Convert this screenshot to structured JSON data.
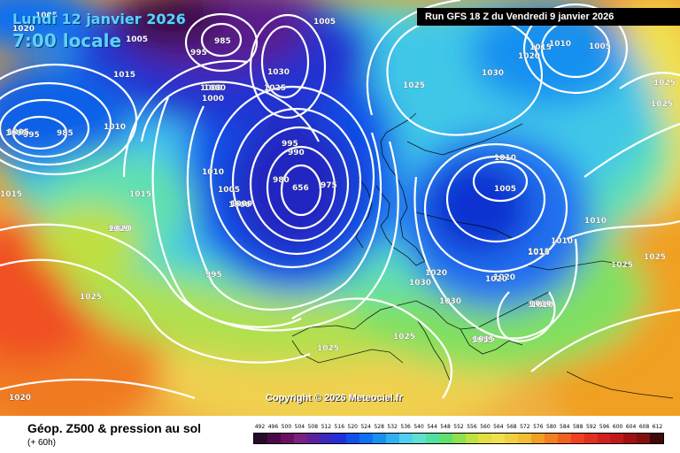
{
  "header": {
    "date": "Lundi 12 janvier 2026",
    "time": "7:00 locale",
    "run": "Run GFS 18 Z du Vendredi 9 janvier 2026"
  },
  "footer": {
    "title": "Géop. Z500 & pression au sol",
    "subtitle": "(+ 60h)",
    "copyright": "Copyright © 2026 Meteociel.fr"
  },
  "scale": {
    "labels": [
      "492",
      "496",
      "500",
      "504",
      "508",
      "512",
      "516",
      "520",
      "524",
      "528",
      "532",
      "536",
      "540",
      "544",
      "548",
      "552",
      "556",
      "560",
      "564",
      "568",
      "572",
      "576",
      "580",
      "584",
      "588",
      "592",
      "596",
      "600",
      "604",
      "608",
      "612"
    ],
    "colors": [
      "#2a0a2a",
      "#4a0a4a",
      "#6a1060",
      "#7a2080",
      "#5a20a0",
      "#3a28c0",
      "#2030d8",
      "#1050e8",
      "#1070f0",
      "#1890f0",
      "#30b0f0",
      "#50d0f0",
      "#60e0d0",
      "#50e0a0",
      "#60e070",
      "#90e050",
      "#c0e040",
      "#e0e040",
      "#f0e050",
      "#f0d040",
      "#f0c030",
      "#f0a020",
      "#f08020",
      "#f06020",
      "#f04020",
      "#e03020",
      "#d02020",
      "#c01818",
      "#a01010",
      "#801010",
      "#400808"
    ]
  },
  "pressure_labels": [
    "1020",
    "1005",
    "995",
    "985",
    "1005",
    "1015",
    "1010",
    "1005",
    "995",
    "1010",
    "1000",
    "1020",
    "1030",
    "1025",
    "1020",
    "1015",
    "1025",
    "1005",
    "1000",
    "985",
    "1010",
    "1000",
    "1005",
    "1025",
    "1030",
    "1020",
    "1015",
    "1000",
    "1005",
    "1005",
    "1010",
    "990",
    "995",
    "980",
    "656",
    "975",
    "1025",
    "1010",
    "1010",
    "1005",
    "1015",
    "1020",
    "1025",
    "1000",
    "1010",
    "1020",
    "1010",
    "1015",
    "1010",
    "1015",
    "995",
    "1020",
    "1025",
    "1030",
    "1030",
    "1020",
    "1010",
    "1015",
    "1025",
    "1025",
    "1025",
    "1020"
  ]
}
